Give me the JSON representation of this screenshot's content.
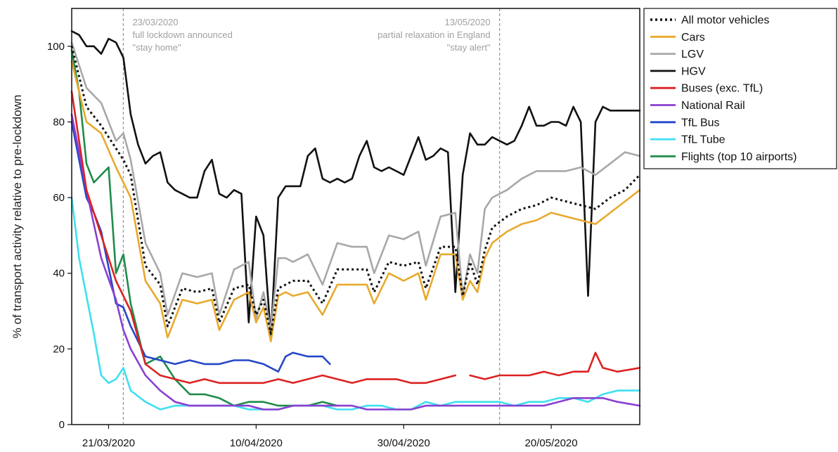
{
  "chart_data": {
    "type": "line",
    "ylabel": "% of transport activity relative to pre-lockdown",
    "ylim": [
      0,
      110
    ],
    "yticks": [
      0,
      20,
      40,
      60,
      80,
      100
    ],
    "xlim": [
      "2020-03-16",
      "2020-06-01"
    ],
    "xticks": [
      {
        "date": "2020-03-21",
        "label": "21/03/2020"
      },
      {
        "date": "2020-04-10",
        "label": "10/04/2020"
      },
      {
        "date": "2020-04-30",
        "label": "30/04/2020"
      },
      {
        "date": "2020-05-20",
        "label": "20/05/2020"
      }
    ],
    "annotations": [
      {
        "date": "2020-03-23",
        "align": "left",
        "lines": [
          "23/03/2020",
          "full lockdown announced",
          "\"stay home\""
        ]
      },
      {
        "date": "2020-05-13",
        "align": "right",
        "lines": [
          "13/05/2020",
          "partial relaxation in England",
          "\"stay alert\""
        ]
      }
    ],
    "legend_position": "outside-right",
    "grid": false,
    "series": [
      {
        "name": "All motor vehicles",
        "color": "#111111",
        "dashed": true,
        "x": [
          "2020-03-16",
          "2020-03-18",
          "2020-03-20",
          "2020-03-22",
          "2020-03-23",
          "2020-03-24",
          "2020-03-26",
          "2020-03-28",
          "2020-03-29",
          "2020-03-31",
          "2020-04-02",
          "2020-04-04",
          "2020-04-05",
          "2020-04-07",
          "2020-04-09",
          "2020-04-10",
          "2020-04-11",
          "2020-04-12",
          "2020-04-13",
          "2020-04-14",
          "2020-04-15",
          "2020-04-17",
          "2020-04-19",
          "2020-04-21",
          "2020-04-23",
          "2020-04-25",
          "2020-04-26",
          "2020-04-28",
          "2020-04-30",
          "2020-05-02",
          "2020-05-03",
          "2020-05-05",
          "2020-05-07",
          "2020-05-08",
          "2020-05-09",
          "2020-05-10",
          "2020-05-11",
          "2020-05-12",
          "2020-05-14",
          "2020-05-16",
          "2020-05-18",
          "2020-05-20",
          "2020-05-22",
          "2020-05-24",
          "2020-05-26",
          "2020-05-28",
          "2020-05-30",
          "2020-06-01"
        ],
        "y": [
          100,
          84,
          79,
          73,
          70,
          66,
          42,
          37,
          26,
          36,
          35,
          36,
          27,
          36,
          37,
          29,
          33,
          24,
          36,
          37,
          38,
          38,
          32,
          41,
          41,
          41,
          35,
          43,
          42,
          43,
          36,
          47,
          47,
          34,
          43,
          37,
          46,
          52,
          55,
          57,
          58,
          60,
          59,
          58,
          57,
          60,
          62,
          66
        ]
      },
      {
        "name": "Cars",
        "color": "#e8a92c",
        "x": [
          "2020-03-16",
          "2020-03-18",
          "2020-03-20",
          "2020-03-22",
          "2020-03-23",
          "2020-03-24",
          "2020-03-26",
          "2020-03-28",
          "2020-03-29",
          "2020-03-31",
          "2020-04-02",
          "2020-04-04",
          "2020-04-05",
          "2020-04-07",
          "2020-04-09",
          "2020-04-10",
          "2020-04-11",
          "2020-04-12",
          "2020-04-13",
          "2020-04-14",
          "2020-04-15",
          "2020-04-17",
          "2020-04-19",
          "2020-04-21",
          "2020-04-23",
          "2020-04-25",
          "2020-04-26",
          "2020-04-28",
          "2020-04-30",
          "2020-05-02",
          "2020-05-03",
          "2020-05-05",
          "2020-05-07",
          "2020-05-08",
          "2020-05-09",
          "2020-05-10",
          "2020-05-11",
          "2020-05-12",
          "2020-05-14",
          "2020-05-16",
          "2020-05-18",
          "2020-05-20",
          "2020-05-22",
          "2020-05-24",
          "2020-05-26",
          "2020-05-28",
          "2020-05-30",
          "2020-06-01"
        ],
        "y": [
          96,
          80,
          77,
          68,
          64,
          60,
          38,
          32,
          23,
          33,
          32,
          33,
          25,
          33,
          35,
          27,
          31,
          22,
          34,
          35,
          34,
          35,
          29,
          37,
          37,
          37,
          32,
          40,
          38,
          40,
          33,
          45,
          45,
          33,
          38,
          35,
          44,
          48,
          51,
          53,
          54,
          56,
          55,
          54,
          53,
          56,
          59,
          62
        ]
      },
      {
        "name": "LGV",
        "color": "#a8a8a8",
        "x": [
          "2020-03-16",
          "2020-03-18",
          "2020-03-20",
          "2020-03-22",
          "2020-03-23",
          "2020-03-24",
          "2020-03-26",
          "2020-03-28",
          "2020-03-29",
          "2020-03-31",
          "2020-04-02",
          "2020-04-04",
          "2020-04-05",
          "2020-04-07",
          "2020-04-09",
          "2020-04-10",
          "2020-04-11",
          "2020-04-12",
          "2020-04-13",
          "2020-04-14",
          "2020-04-15",
          "2020-04-17",
          "2020-04-19",
          "2020-04-21",
          "2020-04-23",
          "2020-04-25",
          "2020-04-26",
          "2020-04-28",
          "2020-04-30",
          "2020-05-02",
          "2020-05-03",
          "2020-05-05",
          "2020-05-07",
          "2020-05-08",
          "2020-05-09",
          "2020-05-10",
          "2020-05-11",
          "2020-05-12",
          "2020-05-14",
          "2020-05-16",
          "2020-05-18",
          "2020-05-20",
          "2020-05-22",
          "2020-05-24",
          "2020-05-26",
          "2020-05-28",
          "2020-05-30",
          "2020-06-01"
        ],
        "y": [
          101,
          89,
          85,
          75,
          77,
          70,
          48,
          40,
          29,
          40,
          39,
          40,
          29,
          41,
          43,
          28,
          35,
          25,
          44,
          44,
          43,
          45,
          37,
          48,
          47,
          47,
          40,
          50,
          49,
          51,
          42,
          55,
          56,
          34,
          45,
          40,
          57,
          60,
          62,
          65,
          67,
          67,
          67,
          68,
          66,
          69,
          72,
          71
        ]
      },
      {
        "name": "HGV",
        "color": "#111111",
        "x": [
          "2020-03-16",
          "2020-03-17",
          "2020-03-18",
          "2020-03-19",
          "2020-03-20",
          "2020-03-21",
          "2020-03-22",
          "2020-03-23",
          "2020-03-24",
          "2020-03-25",
          "2020-03-26",
          "2020-03-27",
          "2020-03-28",
          "2020-03-29",
          "2020-03-30",
          "2020-03-31",
          "2020-04-01",
          "2020-04-02",
          "2020-04-03",
          "2020-04-04",
          "2020-04-05",
          "2020-04-06",
          "2020-04-07",
          "2020-04-08",
          "2020-04-09",
          "2020-04-10",
          "2020-04-11",
          "2020-04-12",
          "2020-04-13",
          "2020-04-14",
          "2020-04-15",
          "2020-04-16",
          "2020-04-17",
          "2020-04-18",
          "2020-04-19",
          "2020-04-20",
          "2020-04-21",
          "2020-04-22",
          "2020-04-23",
          "2020-04-24",
          "2020-04-25",
          "2020-04-26",
          "2020-04-27",
          "2020-04-28",
          "2020-04-29",
          "2020-04-30",
          "2020-05-01",
          "2020-05-02",
          "2020-05-03",
          "2020-05-04",
          "2020-05-05",
          "2020-05-06",
          "2020-05-07",
          "2020-05-08",
          "2020-05-09",
          "2020-05-10",
          "2020-05-11",
          "2020-05-12",
          "2020-05-13",
          "2020-05-14",
          "2020-05-15",
          "2020-05-16",
          "2020-05-17",
          "2020-05-18",
          "2020-05-19",
          "2020-05-20",
          "2020-05-21",
          "2020-05-22",
          "2020-05-23",
          "2020-05-24",
          "2020-05-25",
          "2020-05-26",
          "2020-05-27",
          "2020-05-28",
          "2020-05-29",
          "2020-05-30",
          "2020-05-31",
          "2020-06-01"
        ],
        "y": [
          104,
          103,
          100,
          100,
          98,
          102,
          101,
          97,
          82,
          74,
          69,
          71,
          72,
          64,
          62,
          61,
          60,
          60,
          67,
          70,
          61,
          60,
          62,
          61,
          27,
          55,
          50,
          23,
          60,
          63,
          63,
          63,
          71,
          73,
          65,
          64,
          65,
          64,
          65,
          71,
          75,
          68,
          67,
          68,
          67,
          66,
          71,
          76,
          70,
          71,
          73,
          72,
          35,
          66,
          77,
          74,
          74,
          76,
          75,
          74,
          75,
          79,
          84,
          79,
          79,
          80,
          80,
          79,
          84,
          80,
          34,
          80,
          84,
          83,
          83,
          83,
          83,
          83
        ]
      },
      {
        "name": "Buses (exc. TfL)",
        "color": "#dd2222",
        "x": [
          "2020-03-16",
          "2020-03-18",
          "2020-03-20",
          "2020-03-22",
          "2020-03-23",
          "2020-03-24",
          "2020-03-26",
          "2020-03-28",
          "2020-03-30",
          "2020-04-01",
          "2020-04-03",
          "2020-04-05",
          "2020-04-07",
          "2020-04-09",
          "2020-04-11",
          "2020-04-13",
          "2020-04-15",
          "2020-04-17",
          "2020-04-19",
          "2020-04-21",
          "2020-04-23",
          "2020-04-25",
          "2020-04-27",
          "2020-04-29",
          "2020-05-01",
          "2020-05-03",
          "2020-05-05",
          "2020-05-07",
          "null",
          "2020-05-09",
          "2020-05-11",
          "2020-05-13",
          "2020-05-15",
          "2020-05-17",
          "2020-05-19",
          "2020-05-21",
          "2020-05-23",
          "2020-05-25",
          "2020-05-26",
          "2020-05-27",
          "2020-05-29",
          "2020-06-01"
        ],
        "y": [
          88,
          62,
          50,
          38,
          34,
          30,
          16,
          13,
          12,
          11,
          12,
          11,
          11,
          11,
          11,
          12,
          11,
          12,
          13,
          12,
          11,
          12,
          12,
          12,
          11,
          11,
          12,
          13,
          null,
          13,
          12,
          13,
          13,
          13,
          14,
          13,
          14,
          14,
          19,
          15,
          14,
          15
        ]
      },
      {
        "name": "National Rail",
        "color": "#8a3fd1",
        "x": [
          "2020-03-16",
          "2020-03-18",
          "2020-03-20",
          "2020-03-22",
          "2020-03-23",
          "2020-03-24",
          "2020-03-26",
          "2020-03-28",
          "2020-03-30",
          "2020-04-01",
          "2020-04-03",
          "2020-04-05",
          "2020-04-07",
          "2020-04-09",
          "2020-04-11",
          "2020-04-13",
          "2020-04-15",
          "2020-04-17",
          "2020-04-19",
          "2020-04-21",
          "2020-04-23",
          "2020-04-25",
          "2020-04-27",
          "2020-04-29",
          "2020-05-01",
          "2020-05-03",
          "2020-05-05",
          "2020-05-07",
          "2020-05-09",
          "2020-05-11",
          "2020-05-13",
          "2020-05-15",
          "2020-05-17",
          "2020-05-19",
          "2020-05-21",
          "2020-05-23",
          "2020-05-25",
          "2020-05-27",
          "2020-05-29",
          "2020-06-01"
        ],
        "y": [
          82,
          62,
          44,
          33,
          25,
          20,
          13,
          9,
          6,
          5,
          5,
          5,
          5,
          5,
          4,
          4,
          5,
          5,
          5,
          5,
          5,
          4,
          4,
          4,
          4,
          5,
          5,
          5,
          5,
          5,
          5,
          5,
          5,
          5,
          6,
          7,
          7,
          7,
          6,
          5
        ]
      },
      {
        "name": "TfL Bus",
        "color": "#2547c9",
        "x": [
          "2020-03-16",
          "2020-03-18",
          "2020-03-19",
          "2020-03-20",
          "2020-03-22",
          "2020-03-23",
          "2020-03-24",
          "2020-03-26",
          "2020-03-28",
          "2020-03-30",
          "2020-04-01",
          "2020-04-03",
          "2020-04-05",
          "2020-04-07",
          "2020-04-09",
          "2020-04-11",
          "2020-04-13",
          "2020-04-14",
          "2020-04-15",
          "2020-04-17",
          "2020-04-19",
          "2020-04-20"
        ],
        "y": [
          80,
          60,
          56,
          51,
          32,
          31,
          26,
          18,
          17,
          16,
          17,
          16,
          16,
          17,
          17,
          16,
          14,
          18,
          19,
          18,
          18,
          16
        ]
      },
      {
        "name": "TfL Tube",
        "color": "#3ee0f0",
        "x": [
          "2020-03-16",
          "2020-03-17",
          "2020-03-18",
          "2020-03-19",
          "2020-03-20",
          "2020-03-21",
          "2020-03-22",
          "2020-03-23",
          "2020-03-24",
          "2020-03-26",
          "2020-03-28",
          "2020-03-30",
          "2020-04-01",
          "2020-04-03",
          "2020-04-05",
          "2020-04-07",
          "2020-04-09",
          "2020-04-11",
          "2020-04-13",
          "2020-04-15",
          "2020-04-17",
          "2020-04-19",
          "2020-04-21",
          "2020-04-23",
          "2020-04-25",
          "2020-04-27",
          "2020-04-29",
          "2020-05-01",
          "2020-05-03",
          "2020-05-05",
          "2020-05-07",
          "2020-05-09",
          "2020-05-11",
          "2020-05-13",
          "2020-05-15",
          "2020-05-17",
          "2020-05-19",
          "2020-05-21",
          "2020-05-23",
          "2020-05-25",
          "2020-05-27",
          "2020-05-29",
          "2020-06-01"
        ],
        "y": [
          60,
          44,
          34,
          24,
          13,
          11,
          12,
          15,
          9,
          6,
          4,
          5,
          5,
          5,
          5,
          5,
          4,
          4,
          4,
          5,
          5,
          5,
          4,
          4,
          5,
          5,
          4,
          4,
          6,
          5,
          6,
          6,
          6,
          6,
          5,
          6,
          6,
          7,
          7,
          6,
          8,
          9,
          9
        ]
      },
      {
        "name": "Flights (top 10 airports)",
        "color": "#1f8c4a",
        "x": [
          "2020-03-16",
          "2020-03-17",
          "2020-03-18",
          "2020-03-19",
          "2020-03-20",
          "2020-03-21",
          "2020-03-22",
          "2020-03-23",
          "2020-03-24",
          "2020-03-26",
          "2020-03-28",
          "2020-03-30",
          "2020-04-01",
          "2020-04-03",
          "2020-04-05",
          "2020-04-07",
          "2020-04-09",
          "2020-04-11",
          "2020-04-13",
          "2020-04-15",
          "2020-04-17",
          "2020-04-19",
          "2020-04-21"
        ],
        "y": [
          99,
          88,
          69,
          64,
          66,
          68,
          40,
          45,
          32,
          16,
          18,
          12,
          8,
          8,
          7,
          5,
          6,
          6,
          5,
          5,
          5,
          6,
          5
        ]
      }
    ]
  }
}
